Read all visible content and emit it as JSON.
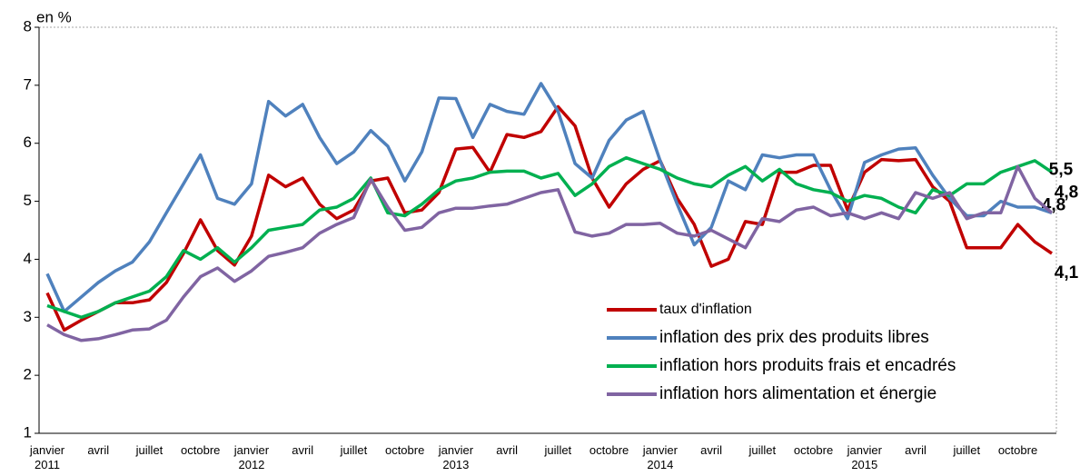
{
  "chart_data": {
    "type": "line",
    "y_axis_label": "en %",
    "ylim": [
      1,
      8
    ],
    "yticks": [
      1,
      2,
      3,
      4,
      5,
      6,
      7,
      8
    ],
    "legend": "lower-right",
    "categories": [
      "janvier 2011",
      null,
      null,
      "avril",
      null,
      null,
      "juillet",
      null,
      null,
      "octobre",
      null,
      null,
      "janvier 2012",
      null,
      null,
      "avril",
      null,
      null,
      "juillet",
      null,
      null,
      "octobre",
      null,
      null,
      "janvier 2013",
      null,
      null,
      "avril",
      null,
      null,
      "juillet",
      null,
      null,
      "octobre",
      null,
      null,
      "janvier 2014",
      null,
      null,
      "avril",
      null,
      null,
      "juillet",
      null,
      null,
      "octobre",
      null,
      null,
      "janvier 2015",
      null,
      null,
      "avril",
      null,
      null,
      "juillet",
      null,
      null,
      "octobre",
      null,
      null
    ],
    "series": [
      {
        "name": "taux d'inflation",
        "color": "#c00000",
        "values": [
          3.42,
          2.78,
          2.95,
          3.1,
          3.25,
          3.25,
          3.3,
          3.6,
          4.1,
          4.68,
          4.15,
          3.9,
          4.4,
          5.45,
          5.25,
          5.4,
          4.95,
          4.7,
          4.85,
          5.35,
          5.4,
          4.8,
          4.85,
          5.15,
          5.9,
          5.93,
          5.5,
          6.15,
          6.1,
          6.2,
          6.63,
          6.3,
          5.4,
          4.9,
          5.3,
          5.55,
          5.7,
          5.05,
          4.6,
          3.88,
          4.0,
          4.65,
          4.6,
          5.5,
          5.5,
          5.62,
          5.62,
          4.85,
          5.5,
          5.72,
          5.7,
          5.72,
          5.25,
          5.0,
          4.2,
          4.2,
          4.2,
          4.6,
          4.3,
          4.1
        ],
        "value_labels": [
          null,
          null,
          null,
          null,
          null,
          null,
          null,
          null,
          null,
          null,
          null,
          null,
          null,
          null,
          null,
          null,
          null,
          null,
          null,
          null,
          null,
          null,
          null,
          null,
          null,
          null,
          null,
          null,
          null,
          null,
          null,
          null,
          null,
          null,
          null,
          null,
          null,
          null,
          null,
          null,
          null,
          null,
          null,
          null,
          null,
          null,
          null,
          null,
          null,
          null,
          null,
          null,
          null,
          null,
          null,
          null,
          null,
          null,
          null,
          "4,1"
        ]
      },
      {
        "name": "inflation des prix des produits libres",
        "color": "#4f81bd",
        "values": [
          3.75,
          3.1,
          3.35,
          3.6,
          3.8,
          3.95,
          4.3,
          4.8,
          5.3,
          5.8,
          5.05,
          4.95,
          5.3,
          6.72,
          6.47,
          6.67,
          6.1,
          5.65,
          5.85,
          6.22,
          5.95,
          5.35,
          5.85,
          6.78,
          6.77,
          6.1,
          6.67,
          6.55,
          6.5,
          7.03,
          6.55,
          5.65,
          5.4,
          6.05,
          6.4,
          6.55,
          5.7,
          4.95,
          4.25,
          4.55,
          5.35,
          5.2,
          5.8,
          5.75,
          5.8,
          5.8,
          5.2,
          4.7,
          5.67,
          5.8,
          5.9,
          5.92,
          5.45,
          5.05,
          4.75,
          4.75,
          5.0,
          4.9,
          4.9,
          4.8
        ],
        "value_labels": [
          null,
          null,
          null,
          null,
          null,
          null,
          null,
          null,
          null,
          null,
          null,
          null,
          null,
          null,
          null,
          null,
          null,
          null,
          null,
          null,
          null,
          null,
          null,
          null,
          null,
          null,
          null,
          null,
          null,
          null,
          null,
          null,
          null,
          null,
          null,
          null,
          null,
          null,
          null,
          null,
          null,
          null,
          null,
          null,
          null,
          null,
          null,
          null,
          null,
          null,
          null,
          null,
          null,
          null,
          null,
          null,
          null,
          null,
          null,
          "4,8"
        ]
      },
      {
        "name": "inflation hors produits frais et encadrés",
        "color": "#00b050",
        "values": [
          3.2,
          3.1,
          3.0,
          3.1,
          3.25,
          3.35,
          3.45,
          3.7,
          4.15,
          4.0,
          4.2,
          3.95,
          4.2,
          4.5,
          4.55,
          4.6,
          4.85,
          4.9,
          5.05,
          5.4,
          4.8,
          4.75,
          4.95,
          5.2,
          5.35,
          5.4,
          5.5,
          5.52,
          5.52,
          5.4,
          5.48,
          5.1,
          5.3,
          5.6,
          5.75,
          5.65,
          5.55,
          5.4,
          5.3,
          5.25,
          5.45,
          5.6,
          5.35,
          5.55,
          5.3,
          5.2,
          5.15,
          5.0,
          5.1,
          5.05,
          4.9,
          4.8,
          5.2,
          5.1,
          5.3,
          5.3,
          5.5,
          5.6,
          5.7,
          5.5
        ],
        "value_labels": [
          null,
          null,
          null,
          null,
          null,
          null,
          null,
          null,
          null,
          null,
          null,
          null,
          null,
          null,
          null,
          null,
          null,
          null,
          null,
          null,
          null,
          null,
          null,
          null,
          null,
          null,
          null,
          null,
          null,
          null,
          null,
          null,
          null,
          null,
          null,
          null,
          null,
          null,
          null,
          null,
          null,
          null,
          null,
          null,
          null,
          null,
          null,
          null,
          null,
          null,
          null,
          null,
          null,
          null,
          null,
          null,
          null,
          null,
          null,
          "5,5"
        ]
      },
      {
        "name": "inflation hors alimentation et énergie",
        "color": "#8064a2",
        "values": [
          2.87,
          2.7,
          2.6,
          2.63,
          2.7,
          2.78,
          2.8,
          2.95,
          3.35,
          3.7,
          3.85,
          3.62,
          3.8,
          4.05,
          4.12,
          4.2,
          4.45,
          4.6,
          4.72,
          5.38,
          4.9,
          4.5,
          4.55,
          4.8,
          4.88,
          4.88,
          4.92,
          4.95,
          5.05,
          5.15,
          5.2,
          4.47,
          4.4,
          4.45,
          4.6,
          4.6,
          4.62,
          4.45,
          4.4,
          4.5,
          4.35,
          4.2,
          4.7,
          4.65,
          4.85,
          4.9,
          4.75,
          4.8,
          4.7,
          4.8,
          4.7,
          5.15,
          5.05,
          5.15,
          4.7,
          4.8,
          4.8,
          5.6,
          5.05,
          4.8
        ],
        "value_labels": [
          null,
          null,
          null,
          null,
          null,
          null,
          null,
          null,
          null,
          null,
          null,
          null,
          null,
          null,
          null,
          null,
          null,
          null,
          null,
          null,
          null,
          null,
          null,
          null,
          null,
          null,
          null,
          null,
          null,
          null,
          null,
          null,
          null,
          null,
          null,
          null,
          null,
          null,
          null,
          null,
          null,
          null,
          null,
          null,
          null,
          null,
          null,
          null,
          null,
          null,
          null,
          null,
          null,
          null,
          null,
          null,
          null,
          null,
          null,
          "4,8"
        ]
      }
    ]
  }
}
